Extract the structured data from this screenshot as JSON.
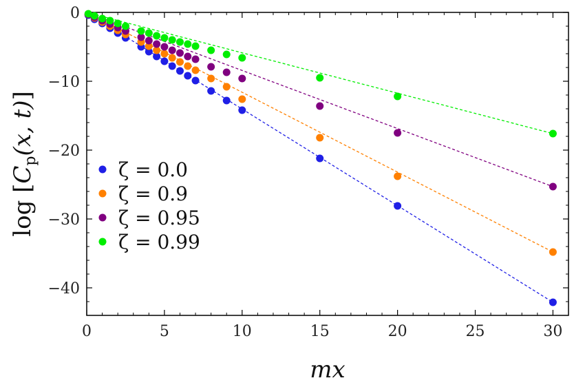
{
  "chart_data": {
    "type": "scatter",
    "title": "",
    "xlabel": "mx",
    "ylabel_parts": {
      "func": "log",
      "symbol": "C",
      "subscript": "p",
      "args": "(x, t)"
    },
    "xlim": [
      0,
      31
    ],
    "ylim": [
      -44,
      0
    ],
    "xticks": [
      0,
      5,
      10,
      15,
      20,
      25,
      30
    ],
    "yticks": [
      0,
      -10,
      -20,
      -30,
      -40
    ],
    "x_tick_labels": [
      "0",
      "5",
      "10",
      "15",
      "20",
      "25",
      "30"
    ],
    "y_tick_labels": [
      "0",
      "−10",
      "−20",
      "−30",
      "−40"
    ],
    "legend_position": "left-center",
    "fit_line_style": "dashed",
    "series": [
      {
        "name": "ζ = 0.0",
        "color": "#1f1fe6",
        "points": [
          [
            0.1,
            -0.4
          ],
          [
            0.5,
            -1.0
          ],
          [
            1,
            -1.6
          ],
          [
            1.5,
            -2.3
          ],
          [
            2,
            -3.0
          ],
          [
            2.5,
            -3.7
          ],
          [
            3.5,
            -5.0
          ],
          [
            4,
            -5.7
          ],
          [
            4.5,
            -6.4
          ],
          [
            5,
            -7.1
          ],
          [
            5.5,
            -7.8
          ],
          [
            6,
            -8.5
          ],
          [
            6.5,
            -9.2
          ],
          [
            7,
            -9.9
          ],
          [
            8,
            -11.4
          ],
          [
            9,
            -12.8
          ],
          [
            10,
            -14.2
          ],
          [
            15,
            -21.2
          ],
          [
            20,
            -28.1
          ],
          [
            30,
            -42.1
          ]
        ],
        "fit": [
          [
            0,
            0
          ],
          [
            30,
            -42.1
          ]
        ]
      },
      {
        "name": "ζ = 0.9",
        "color": "#ff8000",
        "points": [
          [
            0.1,
            -0.3
          ],
          [
            0.5,
            -0.8
          ],
          [
            1,
            -1.4
          ],
          [
            1.5,
            -2.0
          ],
          [
            2,
            -2.6
          ],
          [
            2.5,
            -3.2
          ],
          [
            3.5,
            -4.3
          ],
          [
            4,
            -4.9
          ],
          [
            4.5,
            -5.5
          ],
          [
            5,
            -6.0
          ],
          [
            5.5,
            -6.6
          ],
          [
            6,
            -7.2
          ],
          [
            6.5,
            -7.8
          ],
          [
            7,
            -8.4
          ],
          [
            8,
            -9.6
          ],
          [
            9,
            -10.8
          ],
          [
            10,
            -12.6
          ],
          [
            15,
            -18.2
          ],
          [
            20,
            -23.8
          ],
          [
            30,
            -34.8
          ]
        ],
        "fit": [
          [
            0,
            0
          ],
          [
            30,
            -34.8
          ]
        ]
      },
      {
        "name": "ζ = 0.95",
        "color": "#800080",
        "points": [
          [
            0.1,
            -0.3
          ],
          [
            0.5,
            -0.7
          ],
          [
            1,
            -1.2
          ],
          [
            1.5,
            -1.7
          ],
          [
            2,
            -2.2
          ],
          [
            2.5,
            -2.7
          ],
          [
            3.5,
            -3.6
          ],
          [
            4,
            -4.1
          ],
          [
            4.5,
            -4.6
          ],
          [
            5,
            -5.0
          ],
          [
            5.5,
            -5.5
          ],
          [
            6,
            -5.9
          ],
          [
            6.5,
            -6.4
          ],
          [
            7,
            -6.8
          ],
          [
            8,
            -7.9
          ],
          [
            9,
            -8.7
          ],
          [
            10,
            -9.6
          ],
          [
            15,
            -13.6
          ],
          [
            20,
            -17.5
          ],
          [
            30,
            -25.3
          ]
        ],
        "fit": [
          [
            0,
            0
          ],
          [
            30,
            -25.3
          ]
        ]
      },
      {
        "name": "ζ = 0.99",
        "color": "#00ee00",
        "points": [
          [
            0.1,
            -0.2
          ],
          [
            0.5,
            -0.5
          ],
          [
            1,
            -0.9
          ],
          [
            1.5,
            -1.2
          ],
          [
            2,
            -1.6
          ],
          [
            2.5,
            -2.0
          ],
          [
            3.5,
            -2.7
          ],
          [
            4,
            -3.0
          ],
          [
            4.5,
            -3.4
          ],
          [
            5,
            -3.7
          ],
          [
            5.5,
            -4.0
          ],
          [
            6,
            -4.3
          ],
          [
            6.5,
            -4.6
          ],
          [
            7,
            -4.9
          ],
          [
            8,
            -5.5
          ],
          [
            9,
            -6.1
          ],
          [
            10,
            -6.6
          ],
          [
            15,
            -9.5
          ],
          [
            20,
            -12.2
          ],
          [
            30,
            -17.6
          ]
        ],
        "fit": [
          [
            0,
            0
          ],
          [
            30,
            -17.6
          ]
        ]
      }
    ]
  }
}
